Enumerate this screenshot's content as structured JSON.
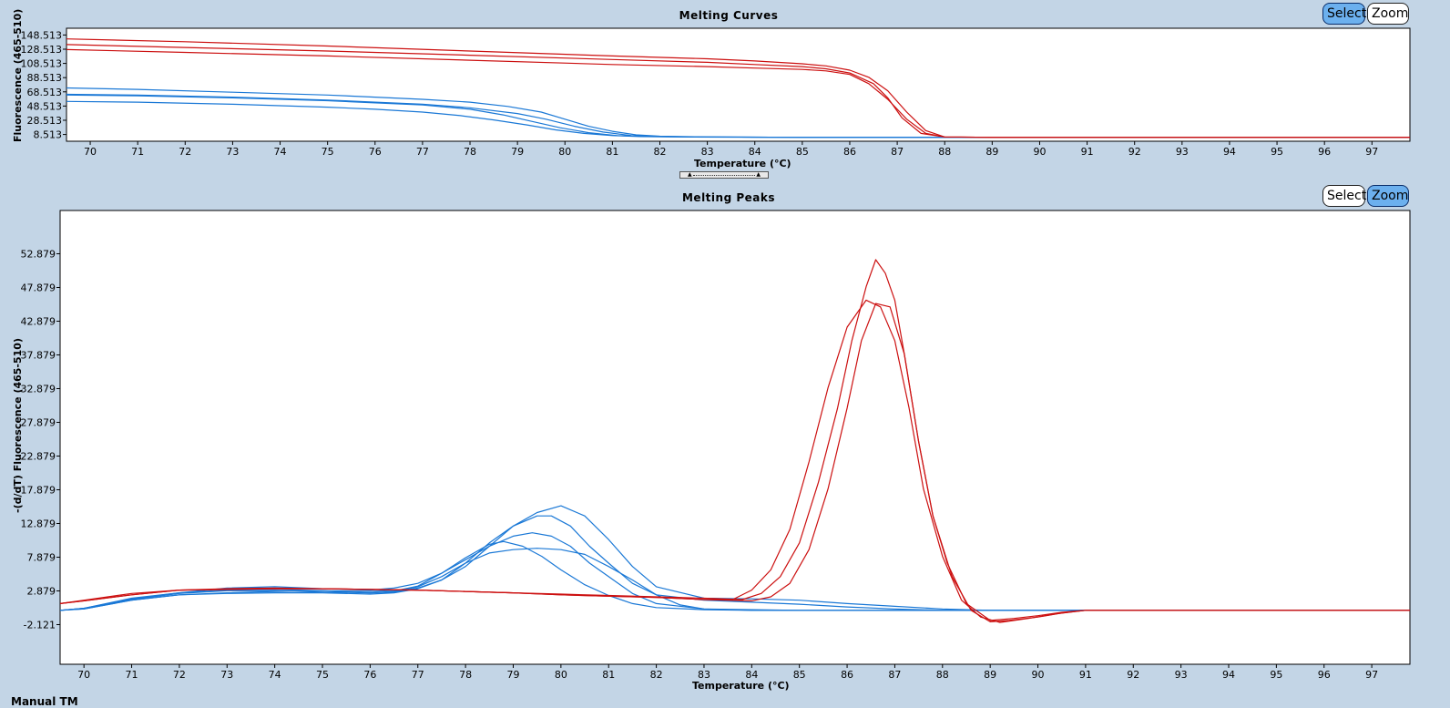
{
  "top_panel": {
    "title": "Melting Curves",
    "select_label": "Select",
    "zoom_label": "Zoom",
    "active_mode": "select"
  },
  "bottom_panel": {
    "title": "Melting Peaks",
    "select_label": "Select",
    "zoom_label": "Zoom",
    "active_mode": "zoom"
  },
  "footer_label": "Manual TM",
  "colors": {
    "background": "#c3d5e6",
    "plot_bg": "#ffffff",
    "red_series": "#cc1010",
    "blue_series": "#1a78d6",
    "active_button": "#6cb0ee"
  },
  "chart_data": [
    {
      "type": "line",
      "title": "Melting Curves",
      "xlabel": "Temperature (°C)",
      "ylabel": "Fluorescence (465-510)",
      "xlim": [
        69.5,
        97.8
      ],
      "ylim": [
        -1,
        158
      ],
      "xticks": [
        70,
        71,
        72,
        73,
        74,
        75,
        76,
        77,
        78,
        79,
        80,
        81,
        82,
        83,
        84,
        85,
        86,
        87,
        88,
        89,
        90,
        91,
        92,
        93,
        94,
        95,
        96,
        97
      ],
      "yticks": [
        8.513,
        28.513,
        48.513,
        68.513,
        88.513,
        108.513,
        128.513,
        148.513
      ],
      "ytick_labels": [
        "8.513",
        "28.513",
        "48.513",
        "68.513",
        "88.513",
        "108.513",
        "128.513",
        "148.513"
      ],
      "grid": false,
      "series": [
        {
          "color": "red",
          "x": [
            69.5,
            72,
            75,
            78,
            81,
            83,
            84,
            85,
            85.5,
            86,
            86.4,
            86.8,
            87.2,
            87.6,
            88,
            89,
            91,
            94,
            97.8
          ],
          "y": [
            143,
            139,
            133,
            126,
            119,
            115,
            112,
            108,
            105,
            99,
            89,
            70,
            40,
            14,
            5,
            4.5,
            4.5,
            4.5,
            4.5
          ]
        },
        {
          "color": "red",
          "x": [
            69.5,
            72,
            75,
            78,
            81,
            83,
            84,
            85,
            85.5,
            86,
            86.5,
            86.8,
            87.1,
            87.5,
            88,
            89,
            91,
            94,
            97.8
          ],
          "y": [
            135,
            131,
            126,
            120,
            114,
            110,
            107,
            104,
            101,
            95,
            80,
            60,
            32,
            10,
            5,
            4.5,
            4.5,
            4.5,
            4.5
          ]
        },
        {
          "color": "red",
          "x": [
            69.5,
            72,
            75,
            78,
            81,
            83,
            84,
            85,
            85.5,
            86,
            86.4,
            86.8,
            87.2,
            87.6,
            88,
            89,
            91,
            94,
            97.8
          ],
          "y": [
            128,
            124,
            119,
            113,
            107,
            104,
            102,
            100,
            98,
            93,
            80,
            58,
            30,
            10,
            5,
            4.5,
            4.5,
            4.5,
            4.5
          ]
        },
        {
          "color": "blue",
          "x": [
            69.5,
            71,
            73,
            75,
            76,
            77,
            78,
            78.8,
            79.5,
            80,
            80.5,
            81,
            81.5,
            82,
            83,
            85,
            88,
            91,
            97.8
          ],
          "y": [
            74,
            72,
            68,
            64,
            61,
            58,
            54,
            48,
            40,
            30,
            20,
            13,
            8,
            6,
            5,
            4.5,
            4.5,
            4.5,
            4.5
          ]
        },
        {
          "color": "blue",
          "x": [
            69.5,
            71,
            73,
            75,
            76,
            77,
            78,
            79,
            79.6,
            80.2,
            80.8,
            81.4,
            82,
            83,
            85,
            88,
            91,
            97.8
          ],
          "y": [
            65,
            64,
            61,
            57,
            54,
            51,
            46,
            38,
            30,
            20,
            12,
            7,
            5.5,
            5,
            4.5,
            4.5,
            4.5,
            4.5
          ]
        },
        {
          "color": "blue",
          "x": [
            69.5,
            71,
            73,
            75,
            76,
            77,
            78,
            78.7,
            79.3,
            79.9,
            80.5,
            81.1,
            81.8,
            83,
            85,
            88,
            91,
            97.8
          ],
          "y": [
            64,
            63,
            60,
            56,
            53,
            50,
            44,
            36,
            27,
            18,
            11,
            7,
            5.5,
            5,
            4.5,
            4.5,
            4.5,
            4.5
          ]
        },
        {
          "color": "blue",
          "x": [
            69.5,
            71,
            73,
            75,
            76,
            77,
            77.8,
            78.5,
            79.2,
            79.8,
            80.4,
            81,
            81.6,
            82.5,
            84,
            88,
            91,
            97.8
          ],
          "y": [
            55,
            54,
            51,
            47,
            44,
            40,
            35,
            29,
            22,
            15,
            10,
            7,
            5.5,
            5,
            4.5,
            4.5,
            4.5,
            4.5
          ]
        }
      ]
    },
    {
      "type": "line",
      "title": "Melting Peaks",
      "xlabel": "Temperature (°C)",
      "ylabel": "-(d/dT) Fluorescence (465-510)",
      "xlim": [
        69.5,
        97.8
      ],
      "ylim": [
        -8,
        59.3
      ],
      "xticks": [
        70,
        71,
        72,
        73,
        74,
        75,
        76,
        77,
        78,
        79,
        80,
        81,
        82,
        83,
        84,
        85,
        86,
        87,
        88,
        89,
        90,
        91,
        92,
        93,
        94,
        95,
        96,
        97
      ],
      "yticks": [
        -2.121,
        2.879,
        7.879,
        12.879,
        17.879,
        22.879,
        27.879,
        32.879,
        37.879,
        42.879,
        47.879,
        52.879
      ],
      "ytick_labels": [
        "-2.121",
        "2.879",
        "7.879",
        "12.879",
        "17.879",
        "22.879",
        "27.879",
        "32.879",
        "37.879",
        "42.879",
        "47.879",
        "52.879"
      ],
      "grid": false,
      "series": [
        {
          "color": "red",
          "x": [
            69.5,
            70,
            71,
            72,
            73,
            74,
            75,
            76,
            77,
            78,
            79,
            80,
            81,
            82,
            83,
            83.8,
            84.2,
            84.6,
            85,
            85.4,
            85.8,
            86.1,
            86.4,
            86.6,
            86.8,
            87,
            87.2,
            87.5,
            87.8,
            88.2,
            88.6,
            89,
            89.4,
            90,
            90.5,
            91,
            94,
            97.8
          ],
          "y": [
            1,
            1.5,
            2.5,
            3,
            3.2,
            3.3,
            3.2,
            3.1,
            3,
            2.8,
            2.6,
            2.4,
            2.2,
            2,
            1.8,
            1.6,
            2.5,
            5,
            10,
            19,
            30,
            40,
            48,
            52,
            50,
            46,
            38,
            25,
            14,
            5,
            0,
            -1.7,
            -1.5,
            -1,
            -0.4,
            0,
            0,
            0
          ]
        },
        {
          "color": "red",
          "x": [
            69.5,
            70,
            71,
            72,
            73,
            74,
            75,
            76,
            77,
            78,
            79,
            80,
            81,
            82,
            83,
            84,
            84.4,
            84.8,
            85.2,
            85.6,
            86,
            86.3,
            86.6,
            86.9,
            87.2,
            87.5,
            87.8,
            88.1,
            88.5,
            89,
            89.5,
            90,
            90.5,
            91,
            94,
            97.8
          ],
          "y": [
            1,
            1.4,
            2.3,
            3,
            3.1,
            3.2,
            3.2,
            3.1,
            3,
            2.8,
            2.6,
            2.3,
            2.1,
            1.9,
            1.6,
            1.4,
            2,
            4,
            9,
            18,
            30,
            40,
            45.5,
            45,
            38,
            25,
            14,
            7,
            1,
            -1.5,
            -1.2,
            -0.8,
            -0.3,
            0,
            0,
            0
          ]
        },
        {
          "color": "red",
          "x": [
            69.5,
            70,
            71,
            72,
            73,
            74,
            75,
            76,
            77,
            78,
            79,
            80,
            81,
            82,
            83,
            83.6,
            84,
            84.4,
            84.8,
            85.2,
            85.6,
            86,
            86.4,
            86.7,
            87,
            87.3,
            87.6,
            88,
            88.4,
            88.8,
            89.2,
            89.8,
            90.4,
            91,
            94,
            97.8
          ],
          "y": [
            1,
            1.4,
            2.3,
            3,
            3.1,
            3.2,
            3.2,
            3.1,
            3,
            2.8,
            2.6,
            2.3,
            2.1,
            1.9,
            1.6,
            1.6,
            3,
            6,
            12,
            22,
            33,
            42,
            46,
            45,
            40,
            30,
            18,
            8,
            1.5,
            -1,
            -1.8,
            -1.2,
            -0.5,
            0,
            0,
            0
          ]
        },
        {
          "color": "blue",
          "x": [
            69.5,
            70,
            71,
            72,
            73,
            74,
            75,
            76,
            76.5,
            77,
            77.5,
            78,
            78.5,
            79,
            79.5,
            80,
            80.5,
            81,
            81.5,
            82,
            83,
            84,
            85,
            86,
            87,
            88,
            89,
            90,
            91,
            94,
            97.8
          ],
          "y": [
            0,
            0.2,
            1.5,
            2.3,
            2.6,
            2.8,
            2.9,
            2.6,
            2.7,
            3.3,
            4.5,
            6.5,
            9.5,
            12.5,
            14.5,
            15.5,
            14,
            10.5,
            6.5,
            3.5,
            1.8,
            1.7,
            1.5,
            1,
            0.6,
            0.2,
            0,
            0,
            0,
            0,
            0
          ]
        },
        {
          "color": "blue",
          "x": [
            69.5,
            70,
            71,
            72,
            73,
            74,
            75,
            76,
            76.5,
            77,
            77.5,
            78,
            78.5,
            79,
            79.5,
            79.8,
            80.2,
            80.6,
            81,
            81.5,
            82,
            83,
            84,
            85,
            86,
            87,
            88,
            89,
            90,
            91,
            94,
            97.8
          ],
          "y": [
            0,
            0.2,
            1.5,
            2.3,
            2.5,
            2.6,
            2.6,
            2.4,
            2.6,
            3.2,
            4.5,
            7,
            10,
            12.5,
            14,
            14,
            12.5,
            9.5,
            7,
            4,
            2.3,
            1.5,
            1.2,
            0.9,
            0.5,
            0.2,
            0,
            0,
            0,
            0,
            0,
            0
          ]
        },
        {
          "color": "blue",
          "x": [
            69.5,
            70,
            71,
            72,
            73,
            74,
            75,
            76,
            76.5,
            77,
            77.5,
            78,
            78.5,
            79,
            79.4,
            79.8,
            80.2,
            80.6,
            81,
            81.5,
            82,
            83,
            84,
            85,
            86,
            87,
            88,
            89,
            90,
            91,
            94,
            97.8
          ],
          "y": [
            0,
            0.3,
            1.8,
            2.6,
            3.3,
            3.5,
            3.2,
            3,
            3.3,
            4,
            5.5,
            7.5,
            9.5,
            11,
            11.5,
            11,
            9.5,
            7,
            5,
            2.5,
            1,
            0.2,
            0.1,
            0,
            0,
            0,
            0,
            0,
            0,
            0,
            0,
            0
          ]
        },
        {
          "color": "blue",
          "x": [
            69.5,
            70,
            71,
            72,
            73,
            74,
            75,
            76,
            76.5,
            77,
            77.5,
            78,
            78.5,
            79,
            79.5,
            80,
            80.5,
            81,
            81.5,
            82,
            82.5,
            83,
            84,
            85,
            86,
            87,
            88,
            89,
            90,
            91,
            94,
            97.8
          ],
          "y": [
            0,
            0.3,
            1.6,
            2.5,
            2.9,
            2.9,
            2.7,
            2.6,
            2.8,
            3.5,
            5,
            7,
            8.5,
            9,
            9.2,
            9,
            8.3,
            6.5,
            4.5,
            2.3,
            0.8,
            0.2,
            0,
            0,
            0,
            0,
            0,
            0,
            0,
            0,
            0,
            0
          ]
        },
        {
          "color": "blue",
          "x": [
            69.5,
            70,
            71,
            72,
            73,
            74,
            75,
            76,
            76.6,
            77,
            77.5,
            78,
            78.5,
            78.8,
            79.2,
            79.6,
            80,
            80.5,
            81,
            81.5,
            82,
            83,
            84,
            85,
            86,
            87,
            88,
            89,
            90,
            91,
            94,
            97.8
          ],
          "y": [
            0,
            0.3,
            1.7,
            2.6,
            3,
            3.1,
            2.9,
            2.8,
            3,
            3.6,
            5.5,
            7.8,
            9.8,
            10.2,
            9.5,
            8,
            6,
            3.8,
            2.2,
            1,
            0.4,
            0.1,
            0,
            0,
            0,
            0,
            0,
            0,
            0,
            0,
            0,
            0
          ]
        }
      ]
    }
  ]
}
